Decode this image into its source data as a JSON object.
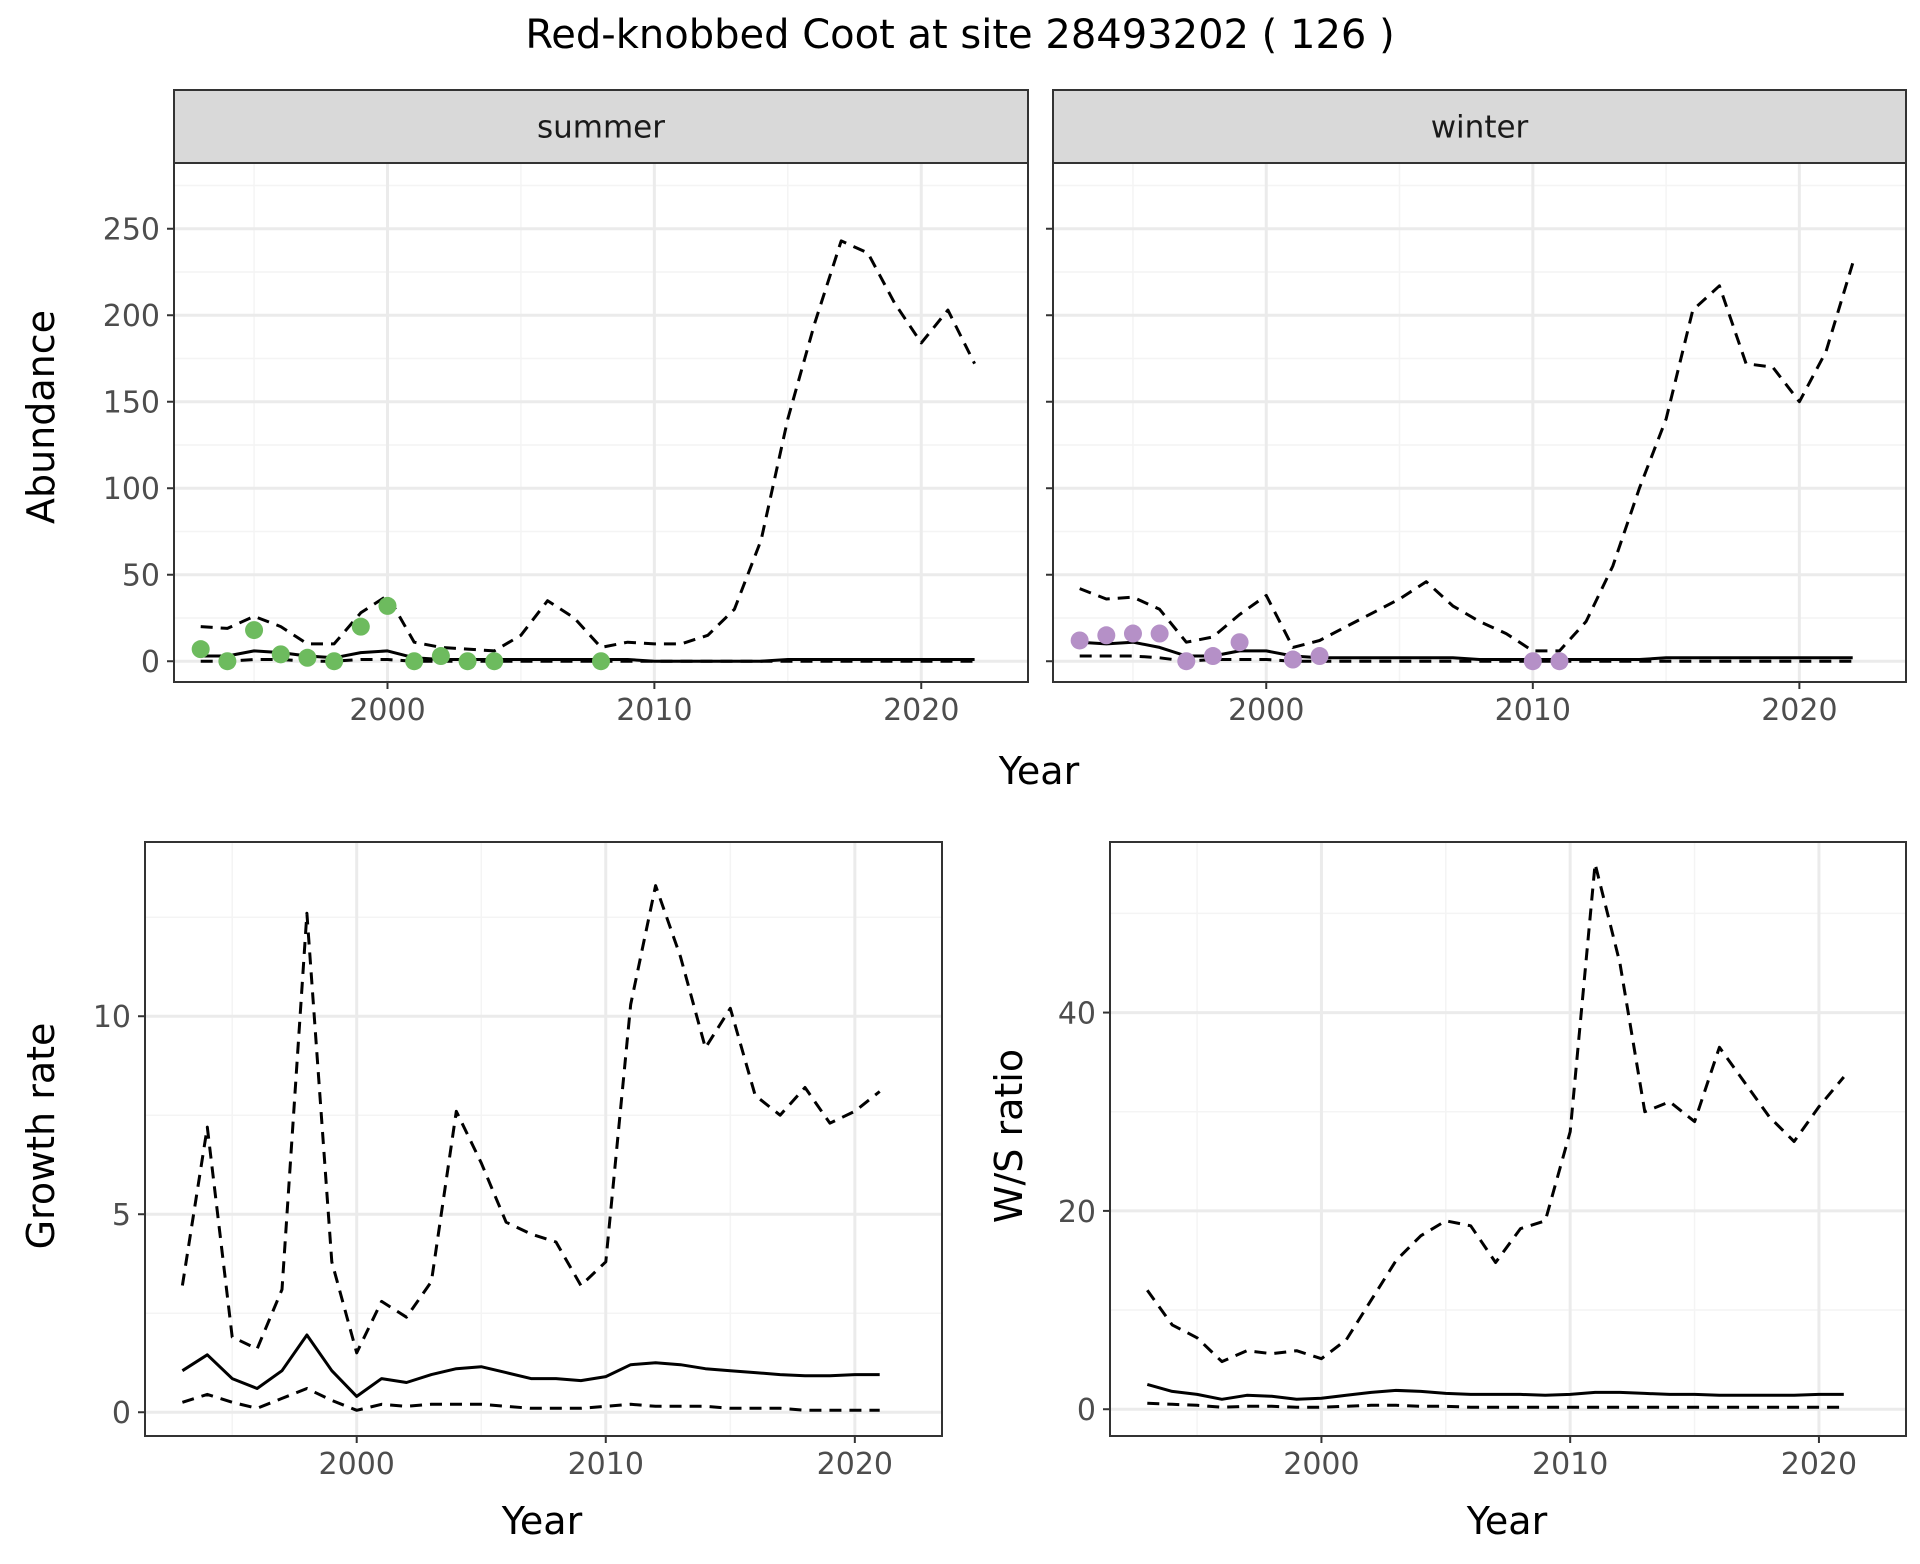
{
  "figure_title": "Red-knobbed Coot at site 28493202 ( 126 )",
  "colors": {
    "summer_points": "#6dbb5e",
    "winter_points": "#b590c7",
    "strip_fill": "#d9d9d9",
    "line": "#000000",
    "grid_major": "#ebebeb",
    "grid_minor": "#f4f4f4",
    "panel_border": "#333333",
    "tick_label": "#4d4d4d"
  },
  "chart_data": [
    {
      "id": "abundance_summer",
      "type": "line",
      "facet": "summer",
      "xlabel": "Year",
      "ylabel": "Abundance",
      "xlim": [
        1992,
        2024
      ],
      "ylim": [
        -12,
        288
      ],
      "xticks": [
        2000,
        2010,
        2020
      ],
      "yticks": [
        0,
        50,
        100,
        150,
        200,
        250
      ],
      "grid": true,
      "series": [
        {
          "role": "median",
          "style": "solid",
          "x": [
            1993,
            1994,
            1995,
            1996,
            1997,
            1998,
            1999,
            2000,
            2001,
            2002,
            2003,
            2004,
            2005,
            2006,
            2007,
            2008,
            2009,
            2010,
            2011,
            2012,
            2013,
            2014,
            2015,
            2016,
            2017,
            2018,
            2019,
            2020,
            2021,
            2022
          ],
          "y": [
            3,
            3,
            6,
            5,
            3,
            2,
            5,
            6,
            2,
            1,
            1,
            1,
            1,
            1,
            1,
            1,
            1,
            0,
            0,
            0,
            0,
            0,
            1,
            1,
            1,
            1,
            1,
            1,
            1,
            1
          ]
        },
        {
          "role": "upper",
          "style": "dashed",
          "x": [
            1993,
            1994,
            1995,
            1996,
            1997,
            1998,
            1999,
            2000,
            2001,
            2002,
            2003,
            2004,
            2005,
            2006,
            2007,
            2008,
            2009,
            2010,
            2011,
            2012,
            2013,
            2014,
            2015,
            2016,
            2017,
            2018,
            2019,
            2020,
            2021,
            2022
          ],
          "y": [
            20,
            19,
            26,
            20,
            10,
            10,
            28,
            38,
            11,
            8,
            7,
            6,
            15,
            35,
            25,
            8,
            11,
            10,
            10,
            15,
            30,
            70,
            140,
            195,
            243,
            236,
            207,
            184,
            203,
            172
          ]
        },
        {
          "role": "lower",
          "style": "dashed",
          "x": [
            1993,
            1994,
            1995,
            1996,
            1997,
            1998,
            1999,
            2000,
            2001,
            2002,
            2003,
            2004,
            2005,
            2006,
            2007,
            2008,
            2009,
            2010,
            2011,
            2012,
            2013,
            2014,
            2015,
            2016,
            2017,
            2018,
            2019,
            2020,
            2021,
            2022
          ],
          "y": [
            0,
            0,
            1,
            1,
            0,
            0,
            1,
            1,
            0,
            0,
            0,
            0,
            0,
            0,
            0,
            0,
            0,
            0,
            0,
            0,
            0,
            0,
            0,
            0,
            0,
            0,
            0,
            0,
            0,
            0
          ]
        }
      ],
      "points": {
        "x": [
          1993,
          1994,
          1995,
          1996,
          1997,
          1998,
          1999,
          2000,
          2001,
          2002,
          2003,
          2004,
          2008
        ],
        "y": [
          7,
          0,
          18,
          4,
          2,
          0,
          20,
          32,
          0,
          3,
          0,
          0,
          0
        ]
      }
    },
    {
      "id": "abundance_winter",
      "type": "line",
      "facet": "winter",
      "xlabel": "Year",
      "ylabel": "Abundance",
      "xlim": [
        1992,
        2024
      ],
      "ylim": [
        -12,
        288
      ],
      "xticks": [
        2000,
        2010,
        2020
      ],
      "yticks": [
        0,
        50,
        100,
        150,
        200,
        250
      ],
      "grid": true,
      "series": [
        {
          "role": "median",
          "style": "solid",
          "x": [
            1993,
            1994,
            1995,
            1996,
            1997,
            1998,
            1999,
            2000,
            2001,
            2002,
            2003,
            2004,
            2005,
            2006,
            2007,
            2008,
            2009,
            2010,
            2011,
            2012,
            2013,
            2014,
            2015,
            2016,
            2017,
            2018,
            2019,
            2020,
            2021,
            2022
          ],
          "y": [
            11,
            10,
            11,
            8,
            3,
            3,
            6,
            6,
            3,
            2,
            2,
            2,
            2,
            2,
            2,
            1,
            1,
            1,
            1,
            1,
            1,
            1,
            2,
            2,
            2,
            2,
            2,
            2,
            2,
            2
          ]
        },
        {
          "role": "upper",
          "style": "dashed",
          "x": [
            1993,
            1994,
            1995,
            1996,
            1997,
            1998,
            1999,
            2000,
            2001,
            2002,
            2003,
            2004,
            2005,
            2006,
            2007,
            2008,
            2009,
            2010,
            2011,
            2012,
            2013,
            2014,
            2015,
            2016,
            2017,
            2018,
            2019,
            2020,
            2021,
            2022
          ],
          "y": [
            42,
            36,
            37,
            30,
            11,
            14,
            27,
            38,
            8,
            12,
            20,
            28,
            36,
            46,
            32,
            23,
            16,
            6,
            6,
            23,
            55,
            100,
            140,
            203,
            217,
            172,
            170,
            150,
            179,
            230
          ]
        },
        {
          "role": "lower",
          "style": "dashed",
          "x": [
            1993,
            1994,
            1995,
            1996,
            1997,
            1998,
            1999,
            2000,
            2001,
            2002,
            2003,
            2004,
            2005,
            2006,
            2007,
            2008,
            2009,
            2010,
            2011,
            2012,
            2013,
            2014,
            2015,
            2016,
            2017,
            2018,
            2019,
            2020,
            2021,
            2022
          ],
          "y": [
            3,
            3,
            3,
            2,
            0,
            1,
            1,
            1,
            0,
            0,
            0,
            0,
            0,
            0,
            0,
            0,
            0,
            0,
            0,
            0,
            0,
            0,
            0,
            0,
            0,
            0,
            0,
            0,
            0,
            0
          ]
        }
      ],
      "points": {
        "x": [
          1993,
          1994,
          1995,
          1996,
          1997,
          1998,
          1999,
          2001,
          2002,
          2010,
          2011
        ],
        "y": [
          12,
          15,
          16,
          16,
          0,
          3,
          11,
          1,
          3,
          0,
          0
        ]
      }
    },
    {
      "id": "growth_rate",
      "type": "line",
      "xlabel": "Year",
      "ylabel": "Growth rate",
      "xlim": [
        1991.5,
        2023.5
      ],
      "ylim": [
        -0.6,
        14.4
      ],
      "xticks": [
        2000,
        2010,
        2020
      ],
      "yticks": [
        0,
        5,
        10
      ],
      "grid": true,
      "series": [
        {
          "role": "median",
          "style": "solid",
          "x": [
            1993,
            1994,
            1995,
            1996,
            1997,
            1998,
            1999,
            2000,
            2001,
            2002,
            2003,
            2004,
            2005,
            2006,
            2007,
            2008,
            2009,
            2010,
            2011,
            2012,
            2013,
            2014,
            2015,
            2016,
            2017,
            2018,
            2019,
            2020,
            2021
          ],
          "y": [
            1.05,
            1.45,
            0.85,
            0.6,
            1.05,
            1.95,
            1.05,
            0.4,
            0.85,
            0.75,
            0.95,
            1.1,
            1.15,
            1.0,
            0.85,
            0.85,
            0.8,
            0.9,
            1.2,
            1.25,
            1.2,
            1.1,
            1.05,
            1.0,
            0.95,
            0.92,
            0.92,
            0.95,
            0.95
          ]
        },
        {
          "role": "upper",
          "style": "dashed",
          "x": [
            1993,
            1994,
            1995,
            1996,
            1997,
            1998,
            1999,
            2000,
            2001,
            2002,
            2003,
            2004,
            2005,
            2006,
            2007,
            2008,
            2009,
            2010,
            2011,
            2012,
            2013,
            2014,
            2015,
            2016,
            2017,
            2018,
            2019,
            2020,
            2021
          ],
          "y": [
            3.2,
            7.2,
            1.9,
            1.6,
            3.1,
            12.6,
            3.8,
            1.5,
            2.8,
            2.4,
            3.3,
            7.6,
            6.3,
            4.8,
            4.5,
            4.3,
            3.2,
            3.8,
            10.3,
            13.3,
            11.5,
            9.2,
            10.2,
            8.0,
            7.5,
            8.2,
            7.3,
            7.6,
            8.1
          ]
        },
        {
          "role": "lower",
          "style": "dashed",
          "x": [
            1993,
            1994,
            1995,
            1996,
            1997,
            1998,
            1999,
            2000,
            2001,
            2002,
            2003,
            2004,
            2005,
            2006,
            2007,
            2008,
            2009,
            2010,
            2011,
            2012,
            2013,
            2014,
            2015,
            2016,
            2017,
            2018,
            2019,
            2020,
            2021
          ],
          "y": [
            0.25,
            0.45,
            0.25,
            0.1,
            0.35,
            0.6,
            0.3,
            0.05,
            0.2,
            0.15,
            0.2,
            0.2,
            0.2,
            0.15,
            0.1,
            0.1,
            0.1,
            0.15,
            0.2,
            0.15,
            0.15,
            0.15,
            0.1,
            0.1,
            0.1,
            0.05,
            0.05,
            0.05,
            0.05
          ]
        }
      ]
    },
    {
      "id": "ws_ratio",
      "type": "line",
      "xlabel": "Year",
      "ylabel": "W/S ratio",
      "xlim": [
        1991.5,
        2023.5
      ],
      "ylim": [
        -2.7,
        57.2
      ],
      "xticks": [
        2000,
        2010,
        2020
      ],
      "yticks": [
        0,
        20,
        40
      ],
      "grid": true,
      "series": [
        {
          "role": "median",
          "style": "solid",
          "x": [
            1993,
            1994,
            1995,
            1996,
            1997,
            1998,
            1999,
            2000,
            2001,
            2002,
            2003,
            2004,
            2005,
            2006,
            2007,
            2008,
            2009,
            2010,
            2011,
            2012,
            2013,
            2014,
            2015,
            2016,
            2017,
            2018,
            2019,
            2020,
            2021
          ],
          "y": [
            2.5,
            1.8,
            1.5,
            1.0,
            1.4,
            1.3,
            1.0,
            1.1,
            1.4,
            1.7,
            1.9,
            1.8,
            1.6,
            1.5,
            1.5,
            1.5,
            1.4,
            1.5,
            1.7,
            1.7,
            1.6,
            1.5,
            1.5,
            1.4,
            1.4,
            1.4,
            1.4,
            1.5,
            1.5
          ]
        },
        {
          "role": "upper",
          "style": "dashed",
          "x": [
            1993,
            1994,
            1995,
            1996,
            1997,
            1998,
            1999,
            2000,
            2001,
            2002,
            2003,
            2004,
            2005,
            2006,
            2007,
            2008,
            2009,
            2010,
            2011,
            2012,
            2013,
            2014,
            2015,
            2016,
            2017,
            2018,
            2019,
            2020,
            2021
          ],
          "y": [
            12,
            8.5,
            7.2,
            4.8,
            5.9,
            5.6,
            5.9,
            5.1,
            7.0,
            11,
            15,
            17.5,
            19,
            18.5,
            14.8,
            18.2,
            19,
            28,
            55,
            45,
            30,
            31,
            29,
            36.5,
            33,
            29.5,
            27,
            30.5,
            33.5
          ]
        },
        {
          "role": "lower",
          "style": "dashed",
          "x": [
            1993,
            1994,
            1995,
            1996,
            1997,
            1998,
            1999,
            2000,
            2001,
            2002,
            2003,
            2004,
            2005,
            2006,
            2007,
            2008,
            2009,
            2010,
            2011,
            2012,
            2013,
            2014,
            2015,
            2016,
            2017,
            2018,
            2019,
            2020,
            2021
          ],
          "y": [
            0.6,
            0.5,
            0.4,
            0.2,
            0.3,
            0.3,
            0.2,
            0.2,
            0.3,
            0.4,
            0.4,
            0.3,
            0.3,
            0.2,
            0.2,
            0.2,
            0.2,
            0.2,
            0.2,
            0.2,
            0.2,
            0.2,
            0.2,
            0.2,
            0.2,
            0.2,
            0.2,
            0.2,
            0.2
          ]
        }
      ]
    }
  ]
}
